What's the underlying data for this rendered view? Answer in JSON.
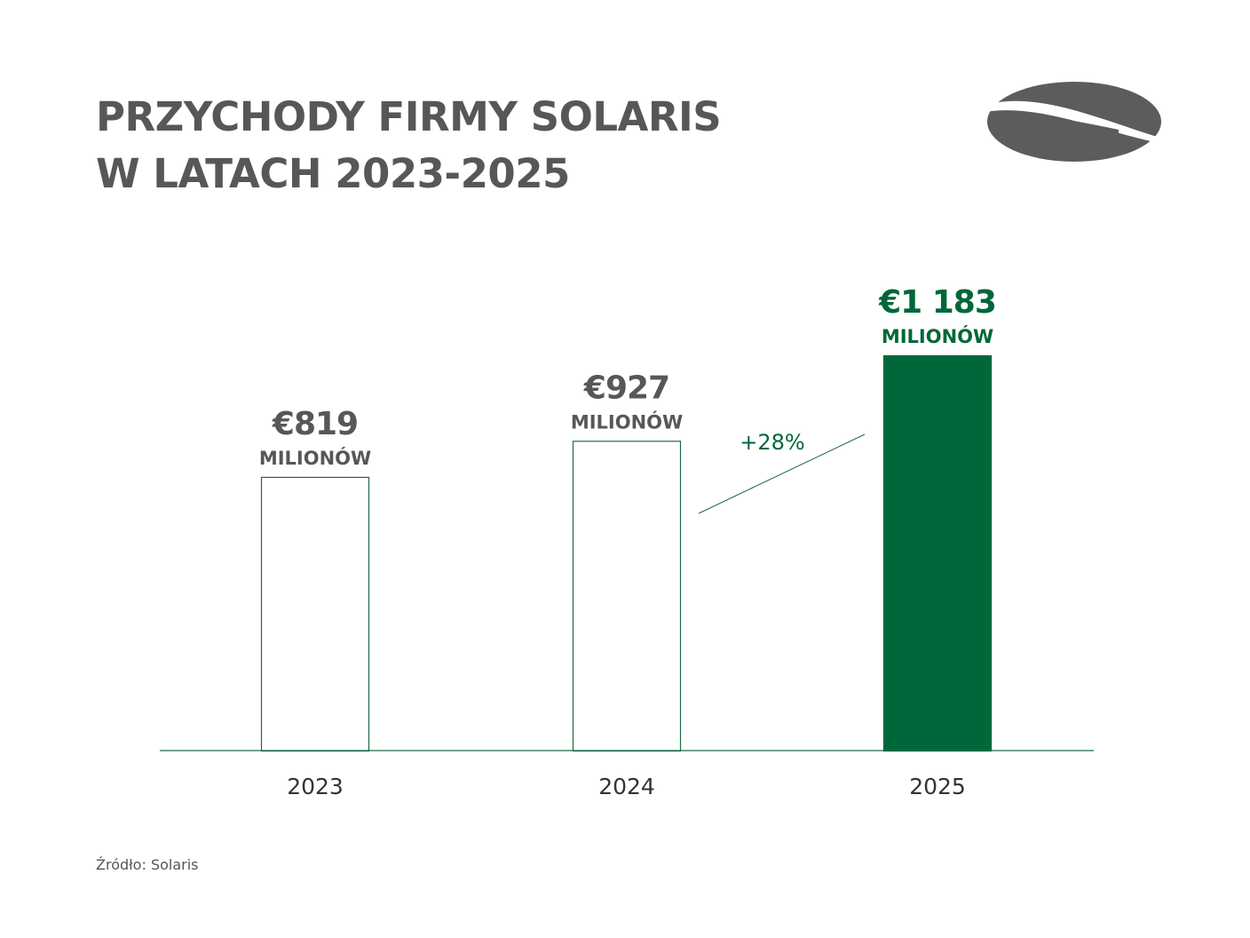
{
  "title_lines": [
    "PRZYCHODY FIRMY SOLARIS",
    "W LATACH 2023-2025"
  ],
  "logo": "solaris-logo",
  "source": "Źródło: Solaris",
  "colors": {
    "accent": "#00673A",
    "text": "#575757",
    "outline": "#1D6B44"
  },
  "chart_data": {
    "type": "bar",
    "title": "PRZYCHODY FIRMY SOLARIS W LATACH 2023-2025",
    "categories": [
      "2023",
      "2024",
      "2025"
    ],
    "values": [
      819,
      927,
      1183
    ],
    "value_labels": [
      "€819",
      "€927",
      "€1 183"
    ],
    "unit_label": "MILIONÓW",
    "highlight_index": 2,
    "annotation": {
      "text": "+28%",
      "between": [
        "2024",
        "2025"
      ]
    },
    "ylim": [
      0,
      1183
    ],
    "grid": false,
    "legend": "none"
  }
}
